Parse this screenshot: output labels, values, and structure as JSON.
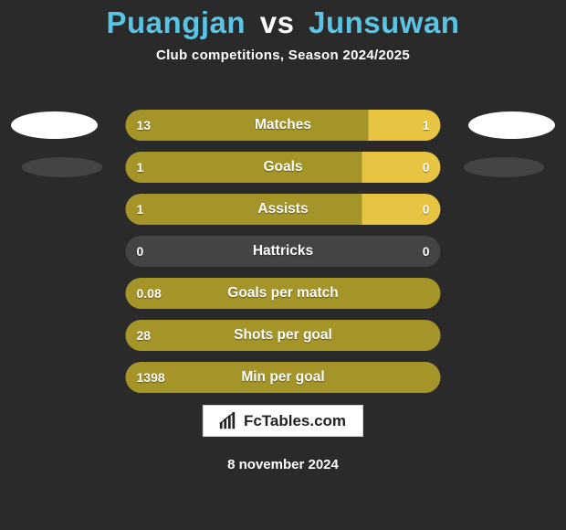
{
  "title": {
    "player1": "Puangjan",
    "vs": "vs",
    "player2": "Junsuwan",
    "color_p1": "#59c4e6",
    "color_vs": "#ffffff",
    "color_p2": "#59c4e6"
  },
  "subtitle": "Club competitions, Season 2024/2025",
  "colors": {
    "left_fill": "#a59528",
    "right_fill": "#e8c443",
    "track": "#444444",
    "background": "#2a2a2a",
    "text": "#ffffff"
  },
  "rows": [
    {
      "label": "Matches",
      "left": "13",
      "right": "1",
      "left_pct": 77,
      "right_pct": 23
    },
    {
      "label": "Goals",
      "left": "1",
      "right": "0",
      "left_pct": 75,
      "right_pct": 25
    },
    {
      "label": "Assists",
      "left": "1",
      "right": "0",
      "left_pct": 75,
      "right_pct": 25
    },
    {
      "label": "Hattricks",
      "left": "0",
      "right": "0",
      "left_pct": 0,
      "right_pct": 0
    },
    {
      "label": "Goals per match",
      "left": "0.08",
      "right": "",
      "left_pct": 100,
      "right_pct": 0
    },
    {
      "label": "Shots per goal",
      "left": "28",
      "right": "",
      "left_pct": 100,
      "right_pct": 0
    },
    {
      "label": "Min per goal",
      "left": "1398",
      "right": "",
      "left_pct": 100,
      "right_pct": 0
    }
  ],
  "badge": {
    "text": "FcTables.com"
  },
  "date": "8 november 2024"
}
